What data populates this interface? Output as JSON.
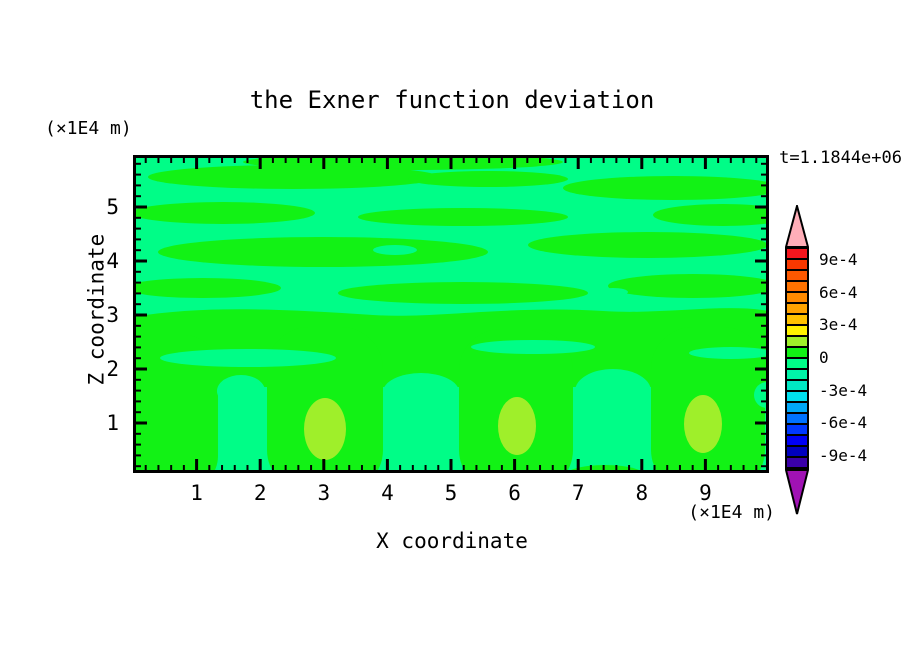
{
  "figure": {
    "background_color": "#FFFFFF"
  },
  "chart_data": {
    "type": "filled_contour",
    "title": "the Exner function deviation",
    "time_label": "t=1.1844e+06",
    "x_axis": {
      "title": "X coordinate",
      "unit_label": "(×1E4 m)",
      "range_1e4m": [
        0,
        10
      ],
      "major_tick_labels": [
        "1",
        "2",
        "3",
        "4",
        "5",
        "6",
        "7",
        "8",
        "9"
      ],
      "minor_tick_interval_1e4m": 0.2
    },
    "y_axis": {
      "title": "Z coordinate",
      "unit_label": "(×1E4 m)",
      "range_1e4m": [
        0,
        6
      ],
      "major_tick_labels": [
        "1",
        "2",
        "3",
        "4",
        "5"
      ],
      "minor_tick_interval_1e4m": 0.2
    },
    "colorbar": {
      "tick_labels": [
        "9e-4",
        "6e-4",
        "3e-4",
        "0",
        "-3e-4",
        "-6e-4",
        "-9e-4"
      ],
      "tick_boundary_indices": [
        1,
        4,
        7,
        10,
        13,
        16,
        19
      ],
      "value_top_1e4": 10,
      "value_bottom_1e4": -10,
      "segment_step_1e4": 1,
      "segment_colors_top_to_bottom": [
        "#F5161E",
        "#FA3800",
        "#FD5800",
        "#FF7200",
        "#FF8A00",
        "#FFA300",
        "#FFC200",
        "#FFF200",
        "#9FEF2A",
        "#12F215",
        "#00FD87",
        "#00F5A8",
        "#00E8C4",
        "#00E0EE",
        "#00A8F8",
        "#0072FF",
        "#0038FF",
        "#0000F5",
        "#0000BE",
        "#3A00A8"
      ],
      "over_range_arrow_color": "#FFAEB8",
      "under_range_arrow_color": "#A012B4"
    },
    "field": {
      "background_color": "#00FD87",
      "background_value_range_1e4": [
        -1,
        0
      ],
      "band_color": "#12F215",
      "band_value_range_1e4": [
        0,
        1
      ],
      "core_color": "#9FEF2A",
      "core_value_range_1e4": [
        1,
        2
      ],
      "core_centers_x_1e4m": [
        3,
        6,
        9
      ],
      "core_centers_z_1e4m": [
        1,
        1,
        1
      ]
    }
  }
}
